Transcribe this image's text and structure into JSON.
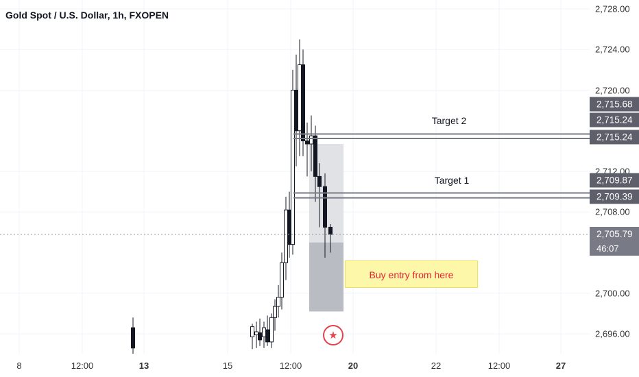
{
  "chart": {
    "title": "Gold Spot / U.S. Dollar, 1h, FXOPEN",
    "colors": {
      "candle": "#131722",
      "grid": "#f0f3fa",
      "target_line": "#787b86",
      "zone_top": "#dcdde0",
      "zone_bottom": "#b2b5bc",
      "note_text": "#e52332",
      "note_bg": "#fdf7a9"
    }
  },
  "price_axis": {
    "labels": [
      "2,728.00",
      "2,724.00",
      "2,720.00",
      "2,712.00",
      "2,708.00",
      "2,700.00",
      "2,696.00"
    ],
    "tags": [
      "2,715.68",
      "2,715.24",
      "2,715.24",
      "2,709.87",
      "2,709.39"
    ],
    "current_price": "2,705.79",
    "countdown": "46:07"
  },
  "time_axis": {
    "ticks": [
      "8",
      "12:00",
      "13",
      "15",
      "12:00",
      "20",
      "22",
      "12:00",
      "27"
    ],
    "bold": [
      false,
      false,
      true,
      false,
      false,
      true,
      false,
      false,
      true
    ]
  },
  "drawings": {
    "target2_label": "Target 2",
    "target1_label": "Target 1",
    "note_text": "Buy entry from here",
    "event_icon": "us-flag-icon"
  },
  "levels": {
    "target2_upper": 2715.68,
    "target2_lower": 2715.24,
    "target1_upper": 2709.87,
    "target1_lower": 2709.39,
    "current": 2705.79,
    "zone_top": 2714.7,
    "zone_mid": 2705.0,
    "zone_bottom": 2698.2
  },
  "chart_data": {
    "type": "candlestick",
    "title": "Gold Spot / U.S. Dollar, 1h, FXOPEN",
    "ylim": [
      2694.5,
      2729
    ],
    "y_ticks": [
      2696,
      2700,
      2708,
      2712,
      2720,
      2724,
      2728
    ],
    "candles": [
      [
        2696.6,
        2697.6,
        2694.0,
        2694.6
      ],
      [
        2695.7,
        2697.0,
        2694.5,
        2696.7
      ],
      [
        2695.9,
        2697.2,
        2694.6,
        2696.2
      ],
      [
        2696.1,
        2697.5,
        2694.8,
        2695.4
      ],
      [
        2695.7,
        2697.2,
        2694.6,
        2696.6
      ],
      [
        2696.4,
        2697.8,
        2694.8,
        2695.2
      ],
      [
        2695.2,
        2698.0,
        2694.6,
        2697.6
      ],
      [
        2697.6,
        2699.4,
        2696.3,
        2698.7
      ],
      [
        2698.7,
        2700.8,
        2697.6,
        2699.6
      ],
      [
        2699.6,
        2704.0,
        2698.4,
        2703.0
      ],
      [
        2703.0,
        2709.5,
        2701.3,
        2708.2
      ],
      [
        2708.2,
        2710.0,
        2703.5,
        2704.8
      ],
      [
        2704.8,
        2722.0,
        2703.8,
        2720.0
      ],
      [
        2720.0,
        2723.5,
        2712.5,
        2716.0
      ],
      [
        2716.0,
        2725.0,
        2713.5,
        2722.5
      ],
      [
        2722.5,
        2724.0,
        2713.5,
        2715.0
      ],
      [
        2715.0,
        2716.8,
        2711.5,
        2714.7
      ],
      [
        2714.7,
        2717.5,
        2712.0,
        2715.5
      ],
      [
        2715.5,
        2716.5,
        2709.0,
        2711.5
      ],
      [
        2711.5,
        2712.8,
        2706.5,
        2710.5
      ],
      [
        2710.5,
        2711.8,
        2703.5,
        2706.5
      ],
      [
        2706.5,
        2706.8,
        2704.0,
        2705.8
      ]
    ]
  }
}
